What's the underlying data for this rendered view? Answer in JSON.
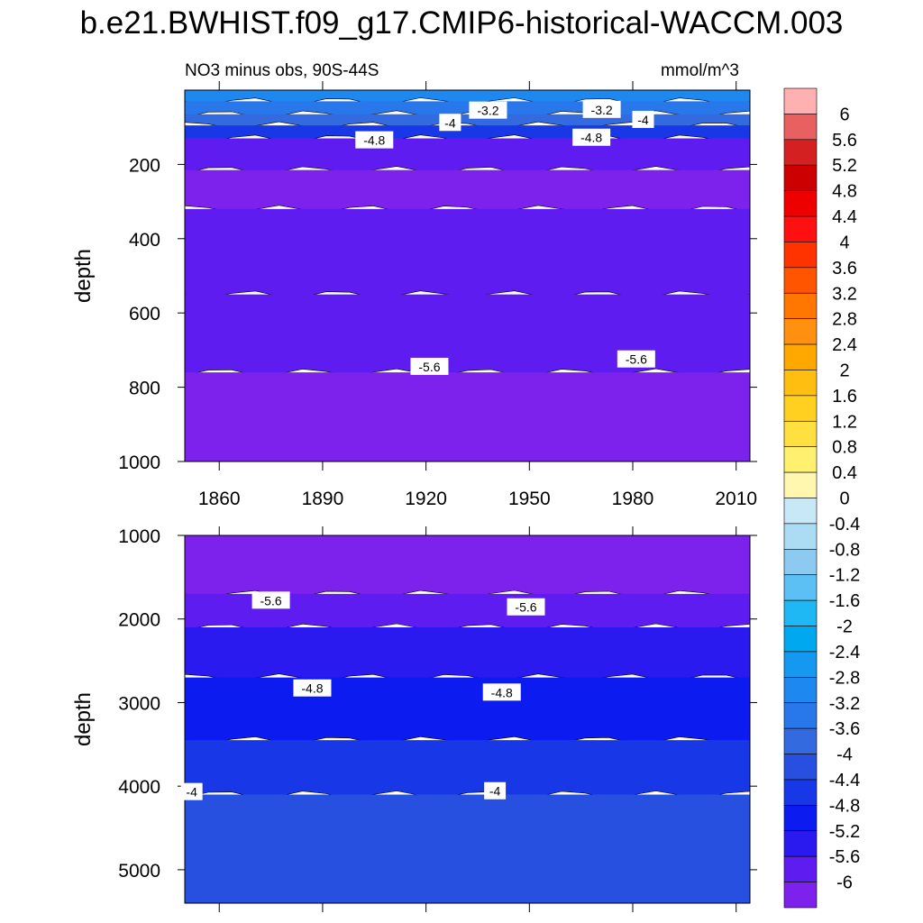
{
  "page_title": "b.e21.BWHIST.f09_g17.CMIP6-historical-WACCM.003",
  "chart_data": {
    "type": "contour",
    "title": "b.e21.BWHIST.f09_g17.CMIP6-historical-WACCM.003",
    "subtitle_left": "NO3 minus obs, 90S-44S",
    "units": "mmol/m^3",
    "x_label": "",
    "x_range": [
      1850,
      2014
    ],
    "x_ticks": [
      1860,
      1890,
      1920,
      1950,
      1980,
      2010
    ],
    "panels": [
      {
        "name": "upper",
        "ylabel": "depth",
        "y_range": [
          0,
          1000
        ],
        "y_ticks": [
          200,
          400,
          600,
          800,
          1000
        ],
        "bands": [
          {
            "depth": 30,
            "level": -2.8
          },
          {
            "depth": 65,
            "level": -3.2
          },
          {
            "depth": 95,
            "level": -3.6
          },
          {
            "depth": 130,
            "level": -4.4
          },
          {
            "depth": 215,
            "level": -5.6
          },
          {
            "depth": 320,
            "level": -6
          },
          {
            "depth": 550,
            "level": -5.6
          },
          {
            "depth": 760,
            "level": -5.6
          },
          {
            "depth": 1000,
            "level": -6
          }
        ],
        "contour_labels": [
          {
            "x": 1938,
            "depth": 55,
            "text": "-3.2"
          },
          {
            "x": 1971,
            "depth": 53,
            "text": "-3.2"
          },
          {
            "x": 1927,
            "depth": 88,
            "text": "-4"
          },
          {
            "x": 1983,
            "depth": 80,
            "text": "-4"
          },
          {
            "x": 1905,
            "depth": 135,
            "text": "-4.8"
          },
          {
            "x": 1968,
            "depth": 128,
            "text": "-4.8"
          },
          {
            "x": 1921,
            "depth": 745,
            "text": "-5.6"
          },
          {
            "x": 1981,
            "depth": 725,
            "text": "-5.6"
          }
        ]
      },
      {
        "name": "lower",
        "ylabel": "depth",
        "y_range": [
          1000,
          5400
        ],
        "y_ticks": [
          1000,
          2000,
          3000,
          4000,
          5000
        ],
        "bands": [
          {
            "depth": 1700,
            "level": -6
          },
          {
            "depth": 2100,
            "level": -5.6
          },
          {
            "depth": 2700,
            "level": -5.2
          },
          {
            "depth": 3450,
            "level": -4.8
          },
          {
            "depth": 4100,
            "level": -4.4
          },
          {
            "depth": 5400,
            "level": -4
          }
        ],
        "contour_labels": [
          {
            "x": 1875,
            "depth": 1780,
            "text": "-5.6"
          },
          {
            "x": 1949,
            "depth": 1860,
            "text": "-5.6"
          },
          {
            "x": 1887,
            "depth": 2830,
            "text": "-4.8"
          },
          {
            "x": 1942,
            "depth": 2880,
            "text": "-4.8"
          },
          {
            "x": 1852,
            "depth": 4070,
            "text": "-4"
          },
          {
            "x": 1940,
            "depth": 4060,
            "text": "-4"
          }
        ]
      }
    ],
    "colorbar": {
      "levels": [
        "6",
        "5.6",
        "5.2",
        "4.8",
        "4.4",
        "4",
        "3.6",
        "3.2",
        "2.8",
        "2.4",
        "2",
        "1.6",
        "1.2",
        "0.8",
        "0.4",
        "0",
        "-0.4",
        "-0.8",
        "-1.2",
        "-1.6",
        "-2",
        "-2.4",
        "-2.8",
        "-3.2",
        "-3.6",
        "-4",
        "-4.4",
        "-4.8",
        "-5.2",
        "-5.6",
        "-6"
      ],
      "colors": [
        "#ffb0b0",
        "#e86060",
        "#d42020",
        "#cc0000",
        "#ee0000",
        "#ff1010",
        "#ff3300",
        "#ff5500",
        "#ff7700",
        "#ff9010",
        "#ffa800",
        "#ffbe10",
        "#ffd020",
        "#ffe040",
        "#fff070",
        "#fff7b0",
        "#c8e8f8",
        "#acdcf4",
        "#8ccaf0",
        "#5cc0f4",
        "#20b8f4",
        "#00a8f0",
        "#1498f0",
        "#1c88f0",
        "#2878ec",
        "#346ae0",
        "#2850e0",
        "#1838e8",
        "#0c1cf0",
        "#2a1af0",
        "#5e1cf0",
        "#7c22ec"
      ]
    }
  }
}
